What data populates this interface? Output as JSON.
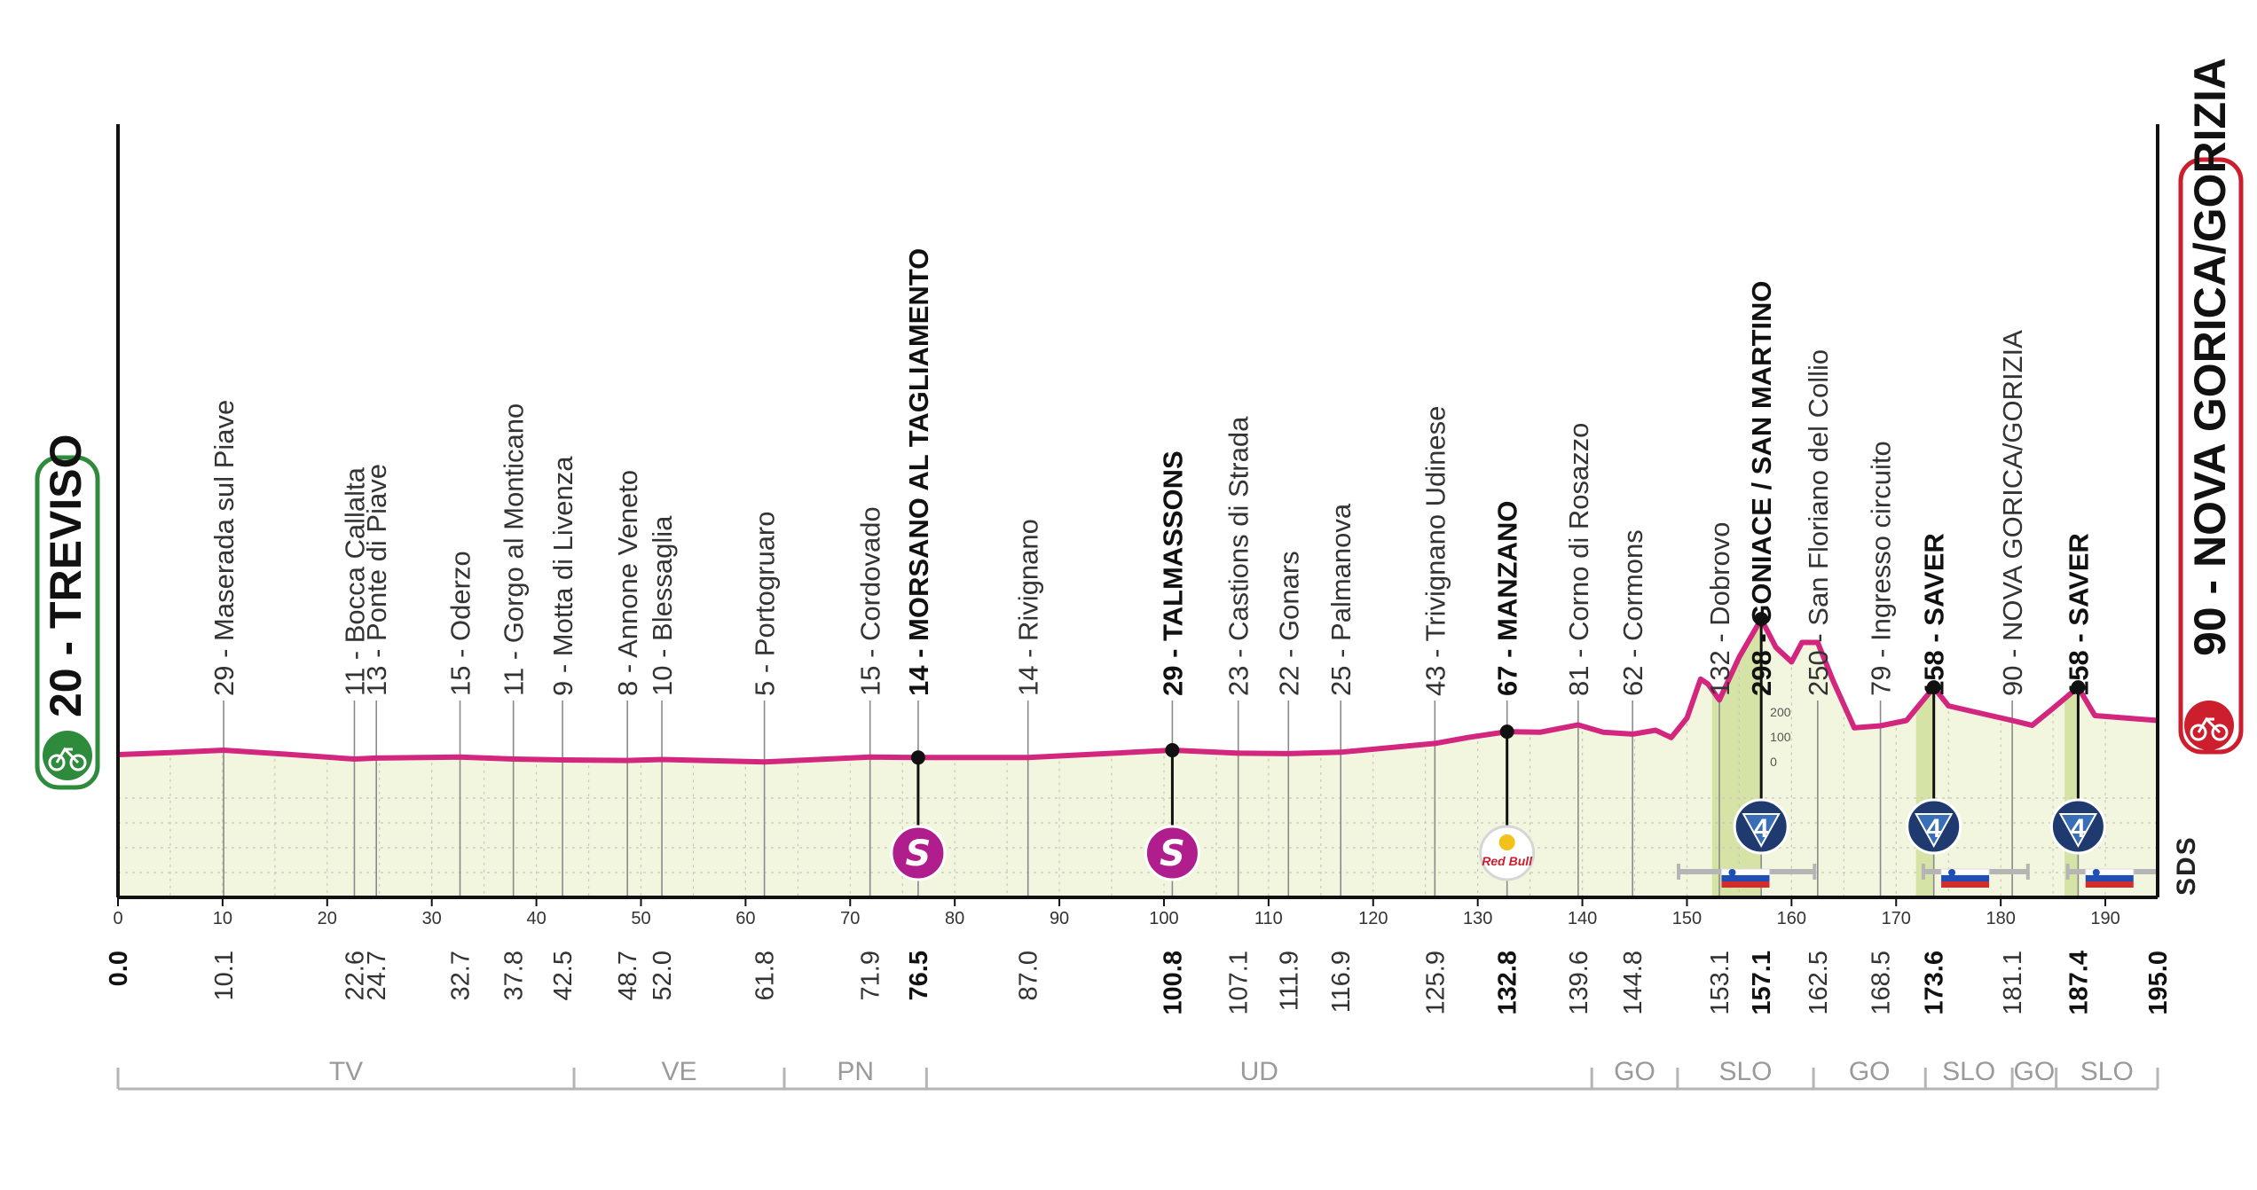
{
  "start": {
    "label": "20 - TREVISO",
    "km": "0.0"
  },
  "finish": {
    "label": "90 - NOVA GORICA/GORIZIA",
    "km": "195.0"
  },
  "brand_mark": "SDS",
  "colors": {
    "profile_line": "#d3267f",
    "profile_fill": "#f3f6df",
    "climb_fill": "#d5e4a6",
    "start_badge": "#2e8b3c",
    "finish_badge": "#cc1e2c",
    "sprint_badge": "#b01e8e",
    "kom_badge": "#1e3a6e",
    "axis": "#111111"
  },
  "chart_data": {
    "type": "area",
    "x_unit": "km",
    "xlim": [
      0,
      195
    ],
    "x_ticks": [
      0,
      10,
      20,
      30,
      40,
      50,
      60,
      70,
      80,
      90,
      100,
      110,
      120,
      130,
      140,
      150,
      160,
      170,
      180,
      190
    ],
    "ylim": [
      0,
      600
    ],
    "profile": [
      [
        0,
        20
      ],
      [
        5,
        24
      ],
      [
        10.1,
        29
      ],
      [
        16,
        21
      ],
      [
        22.6,
        11
      ],
      [
        24.7,
        13
      ],
      [
        32.7,
        15
      ],
      [
        37.8,
        11
      ],
      [
        42.5,
        9
      ],
      [
        48.7,
        8
      ],
      [
        52.0,
        10
      ],
      [
        61.8,
        5
      ],
      [
        71.9,
        15
      ],
      [
        76.5,
        14
      ],
      [
        87.0,
        14
      ],
      [
        100.8,
        29
      ],
      [
        107.1,
        23
      ],
      [
        111.9,
        22
      ],
      [
        116.9,
        25
      ],
      [
        125.9,
        43
      ],
      [
        129,
        55
      ],
      [
        132.8,
        67
      ],
      [
        136,
        66
      ],
      [
        139.6,
        81
      ],
      [
        142,
        66
      ],
      [
        144.8,
        62
      ],
      [
        147,
        70
      ],
      [
        148.5,
        55
      ],
      [
        150,
        95
      ],
      [
        151.3,
        175
      ],
      [
        152,
        165
      ],
      [
        153.1,
        132
      ],
      [
        155,
        220
      ],
      [
        157.1,
        298
      ],
      [
        158.5,
        240
      ],
      [
        160,
        210
      ],
      [
        161,
        250
      ],
      [
        162.5,
        250
      ],
      [
        164,
        170
      ],
      [
        166,
        75
      ],
      [
        168.5,
        79
      ],
      [
        171,
        90
      ],
      [
        173.6,
        158
      ],
      [
        175,
        120
      ],
      [
        177,
        110
      ],
      [
        181.1,
        90
      ],
      [
        183,
        80
      ],
      [
        185,
        115
      ],
      [
        187.4,
        158
      ],
      [
        189,
        100
      ],
      [
        192,
        95
      ],
      [
        195,
        90
      ]
    ],
    "checkpoints": [
      {
        "km": "10.1",
        "name": "29 - Maserada sul Piave",
        "major": false
      },
      {
        "km": "22.6",
        "name": "11 - Bocca Callalta",
        "major": false
      },
      {
        "km": "24.7",
        "name": "13 - Ponte di Piave",
        "major": false
      },
      {
        "km": "32.7",
        "name": "15 - Oderzo",
        "major": false
      },
      {
        "km": "37.8",
        "name": "11 - Gorgo al Monticano",
        "major": false
      },
      {
        "km": "42.5",
        "name": "9 - Motta di Livenza",
        "major": false
      },
      {
        "km": "48.7",
        "name": "8 - Annone Veneto",
        "major": false
      },
      {
        "km": "52.0",
        "name": "10 - Blessaglia",
        "major": false
      },
      {
        "km": "61.8",
        "name": "5 - Portogruaro",
        "major": false
      },
      {
        "km": "71.9",
        "name": "15 - Cordovado",
        "major": false
      },
      {
        "km": "76.5",
        "name": "14 - MORSANO AL TAGLIAMENTO",
        "major": true
      },
      {
        "km": "87.0",
        "name": "14 - Rivignano",
        "major": false
      },
      {
        "km": "100.8",
        "name": "29 - TALMASSONS",
        "major": true
      },
      {
        "km": "107.1",
        "name": "23 - Castions di Strada",
        "major": false
      },
      {
        "km": "111.9",
        "name": "22 - Gonars",
        "major": false
      },
      {
        "km": "116.9",
        "name": "25 - Palmanova",
        "major": false
      },
      {
        "km": "125.9",
        "name": "43 - Trivignano Udinese",
        "major": false
      },
      {
        "km": "132.8",
        "name": "67 - MANZANO",
        "major": true
      },
      {
        "km": "139.6",
        "name": "81 - Corno di Rosazzo",
        "major": false
      },
      {
        "km": "144.8",
        "name": "62 - Cormons",
        "major": false
      },
      {
        "km": "153.1",
        "name": "132 - Dobrovo",
        "major": false
      },
      {
        "km": "157.1",
        "name": "298 - GONIACE / SAN MARTINO",
        "major": true
      },
      {
        "km": "162.5",
        "name": "250 - San Floriano del Collio",
        "major": false
      },
      {
        "km": "168.5",
        "name": "79 - Ingresso circuito",
        "major": false
      },
      {
        "km": "173.6",
        "name": "158 - SAVER",
        "major": true
      },
      {
        "km": "181.1",
        "name": "90 - NOVA GORICA/GORIZIA",
        "major": false
      },
      {
        "km": "187.4",
        "name": "158 - SAVER",
        "major": true
      }
    ],
    "sprints": [
      {
        "km": 76.5,
        "label": "S"
      },
      {
        "km": 100.8,
        "label": "S"
      }
    ],
    "sponsor_point": {
      "km": 132.8,
      "label": "Red Bull"
    },
    "kom": [
      {
        "km": 157.1,
        "category": "4",
        "start_km": 152.4
      },
      {
        "km": 173.6,
        "category": "4",
        "start_km": 171.9
      },
      {
        "km": 187.4,
        "category": "4",
        "start_km": 186.1
      }
    ],
    "slovenia_flags": [
      155.6,
      176.6,
      190.4
    ],
    "slovenia_spans": [
      [
        149.2,
        162.2
      ],
      [
        172.6,
        182.6
      ],
      [
        186.4,
        195
      ]
    ],
    "inset_altitude_labels": [
      "200",
      "100",
      "0"
    ],
    "regions": [
      {
        "label": "TV",
        "from": 0,
        "to": 43.6
      },
      {
        "label": "VE",
        "from": 43.6,
        "to": 63.7
      },
      {
        "label": "PN",
        "from": 63.7,
        "to": 77.3
      },
      {
        "label": "UD",
        "from": 77.3,
        "to": 140.9
      },
      {
        "label": "GO",
        "from": 140.9,
        "to": 149.1
      },
      {
        "label": "SLO",
        "from": 149.1,
        "to": 162.1
      },
      {
        "label": "GO",
        "from": 162.1,
        "to": 172.8
      },
      {
        "label": "SLO",
        "from": 172.8,
        "to": 181.1
      },
      {
        "label": "GO",
        "from": 181.1,
        "to": 185.3
      },
      {
        "label": "SLO",
        "from": 185.3,
        "to": 195
      }
    ]
  }
}
